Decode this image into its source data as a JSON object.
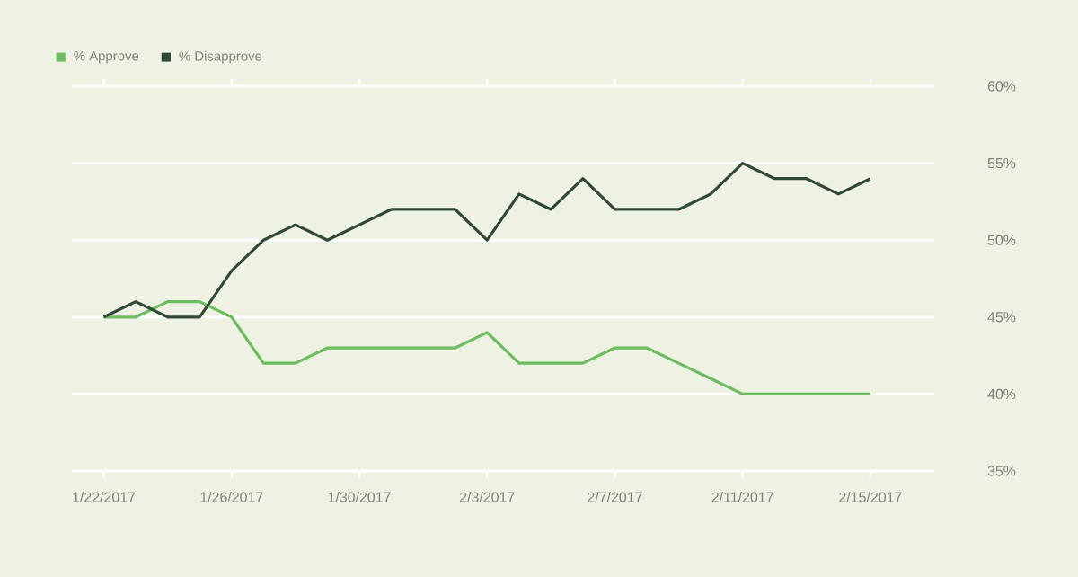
{
  "chart_data": {
    "type": "line",
    "x": [
      "2017-01-22",
      "2017-01-23",
      "2017-01-24",
      "2017-01-25",
      "2017-01-26",
      "2017-01-27",
      "2017-01-28",
      "2017-01-29",
      "2017-01-30",
      "2017-01-31",
      "2017-02-01",
      "2017-02-02",
      "2017-02-03",
      "2017-02-04",
      "2017-02-05",
      "2017-02-06",
      "2017-02-07",
      "2017-02-08",
      "2017-02-09",
      "2017-02-10",
      "2017-02-11",
      "2017-02-12",
      "2017-02-13",
      "2017-02-14",
      "2017-02-15"
    ],
    "series": [
      {
        "name": "% Approve",
        "color": "#6cbd5f",
        "values": [
          45,
          45,
          46,
          46,
          45,
          42,
          42,
          43,
          43,
          43,
          43,
          43,
          44,
          42,
          42,
          42,
          43,
          43,
          42,
          41,
          40,
          40,
          40,
          40,
          40
        ]
      },
      {
        "name": "% Disapprove",
        "color": "#2e4a34",
        "values": [
          45,
          46,
          45,
          45,
          48,
          50,
          51,
          50,
          51,
          52,
          52,
          52,
          50,
          53,
          52,
          54,
          52,
          52,
          52,
          53,
          55,
          54,
          54,
          53,
          54
        ]
      }
    ],
    "xlim": [
      "2017-01-21",
      "2017-02-17"
    ],
    "xticks": [
      {
        "value": "2017-01-22",
        "label": "1/22/2017"
      },
      {
        "value": "2017-01-26",
        "label": "1/26/2017"
      },
      {
        "value": "2017-01-30",
        "label": "1/30/2017"
      },
      {
        "value": "2017-02-03",
        "label": "2/3/2017"
      },
      {
        "value": "2017-02-07",
        "label": "2/7/2017"
      },
      {
        "value": "2017-02-11",
        "label": "2/11/2017"
      },
      {
        "value": "2017-02-15",
        "label": "2/15/2017"
      }
    ],
    "ylim": [
      35,
      60
    ],
    "yticks": [
      {
        "value": 35,
        "label": "35%"
      },
      {
        "value": 40,
        "label": "40%"
      },
      {
        "value": 45,
        "label": "45%"
      },
      {
        "value": 50,
        "label": "50%"
      },
      {
        "value": 55,
        "label": "55%"
      },
      {
        "value": 60,
        "label": "60%"
      }
    ],
    "grid": "y",
    "legend": "top left",
    "marker": "none",
    "line_style": "solid"
  }
}
